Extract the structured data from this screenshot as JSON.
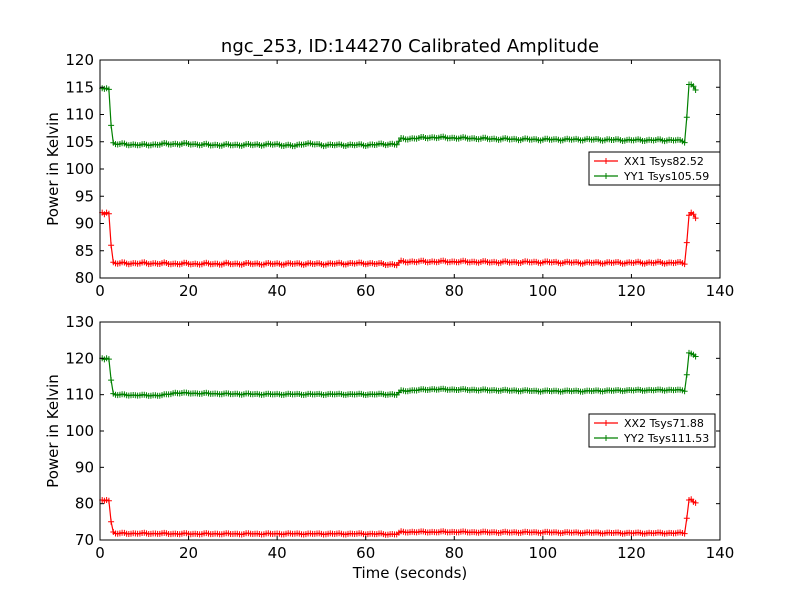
{
  "title": "ngc_253, ID:144270 Calibrated Amplitude",
  "chart_data": [
    {
      "type": "line",
      "ylabel": "Power in Kelvin",
      "xlabel": "",
      "xlim": [
        0,
        140
      ],
      "ylim": [
        80,
        120
      ],
      "xticks": [
        "0",
        "20",
        "40",
        "60",
        "80",
        "100",
        "120",
        "140"
      ],
      "yticks": [
        "80",
        "85",
        "90",
        "95",
        "100",
        "105",
        "110",
        "115",
        "120"
      ],
      "legend_position": "center-right",
      "series": [
        {
          "name": "XX1 Tsys82.52",
          "color": "#ff0000",
          "start": [
            [
              0.5,
              92.0
            ],
            [
              1.0,
              91.7
            ],
            [
              1.5,
              92.0
            ],
            [
              2.0,
              91.8
            ],
            [
              2.5,
              86.0
            ],
            [
              3.0,
              82.9
            ]
          ],
          "base": [
            [
              3,
              82.7
            ],
            [
              10,
              82.7
            ],
            [
              20,
              82.6
            ],
            [
              30,
              82.6
            ],
            [
              40,
              82.6
            ],
            [
              50,
              82.6
            ],
            [
              60,
              82.7
            ],
            [
              66,
              82.5
            ],
            [
              67,
              82.4
            ],
            [
              68,
              83.0
            ],
            [
              70,
              83.0
            ],
            [
              80,
              83.0
            ],
            [
              90,
              82.9
            ],
            [
              100,
              82.9
            ],
            [
              110,
              82.8
            ],
            [
              120,
              82.8
            ],
            [
              130,
              82.8
            ],
            [
              132,
              82.7
            ]
          ],
          "end": [
            [
              132.5,
              86.5
            ],
            [
              133.0,
              91.5
            ],
            [
              133.5,
              92.0
            ],
            [
              134.0,
              91.7
            ],
            [
              134.5,
              91.0
            ]
          ]
        },
        {
          "name": "YY1 Tsys105.59",
          "color": "#008000",
          "start": [
            [
              0.5,
              114.8
            ],
            [
              1.0,
              114.7
            ],
            [
              1.5,
              114.8
            ],
            [
              2.0,
              114.6
            ],
            [
              2.5,
              108.0
            ],
            [
              3.0,
              104.8
            ]
          ],
          "base": [
            [
              3,
              104.6
            ],
            [
              10,
              104.4
            ],
            [
              15,
              104.6
            ],
            [
              20,
              104.6
            ],
            [
              25,
              104.4
            ],
            [
              30,
              104.4
            ],
            [
              40,
              104.5
            ],
            [
              44,
              104.2
            ],
            [
              46,
              104.7
            ],
            [
              50,
              104.4
            ],
            [
              60,
              104.4
            ],
            [
              66,
              104.6
            ],
            [
              67,
              104.5
            ],
            [
              68,
              105.5
            ],
            [
              75,
              105.8
            ],
            [
              80,
              105.7
            ],
            [
              90,
              105.5
            ],
            [
              100,
              105.4
            ],
            [
              110,
              105.4
            ],
            [
              120,
              105.3
            ],
            [
              130,
              105.3
            ],
            [
              132,
              105.0
            ]
          ],
          "end": [
            [
              132.5,
              109.5
            ],
            [
              133.0,
              115.5
            ],
            [
              133.5,
              115.5
            ],
            [
              134.0,
              115.2
            ],
            [
              134.5,
              114.5
            ]
          ]
        }
      ]
    },
    {
      "type": "line",
      "ylabel": "Power in Kelvin",
      "xlabel": "Time (seconds)",
      "xlim": [
        0,
        140
      ],
      "ylim": [
        70,
        130
      ],
      "xticks": [
        "0",
        "20",
        "40",
        "60",
        "80",
        "100",
        "120",
        "140"
      ],
      "yticks": [
        "70",
        "80",
        "90",
        "100",
        "110",
        "120",
        "130"
      ],
      "legend_position": "center-right",
      "series": [
        {
          "name": "XX2 Tsys71.88",
          "color": "#ff0000",
          "start": [
            [
              0.5,
              81.0
            ],
            [
              1.0,
              80.8
            ],
            [
              1.5,
              81.0
            ],
            [
              2.0,
              80.8
            ],
            [
              2.5,
              75.0
            ],
            [
              3.0,
              72.2
            ]
          ],
          "base": [
            [
              3,
              71.8
            ],
            [
              10,
              71.8
            ],
            [
              20,
              71.7
            ],
            [
              30,
              71.7
            ],
            [
              40,
              71.7
            ],
            [
              50,
              71.7
            ],
            [
              60,
              71.7
            ],
            [
              66,
              71.6
            ],
            [
              67,
              71.6
            ],
            [
              68,
              72.2
            ],
            [
              75,
              72.2
            ],
            [
              80,
              72.2
            ],
            [
              90,
              72.1
            ],
            [
              100,
              72.1
            ],
            [
              110,
              72.0
            ],
            [
              120,
              71.9
            ],
            [
              130,
              71.9
            ],
            [
              132,
              71.9
            ]
          ],
          "end": [
            [
              132.5,
              76.0
            ],
            [
              133.0,
              81.0
            ],
            [
              133.5,
              81.2
            ],
            [
              134.0,
              80.5
            ],
            [
              134.5,
              80.2
            ]
          ]
        },
        {
          "name": "YY2 Tsys111.53",
          "color": "#008000",
          "start": [
            [
              0.5,
              120.0
            ],
            [
              1.0,
              119.7
            ],
            [
              1.5,
              120.0
            ],
            [
              2.0,
              119.8
            ],
            [
              2.5,
              114.0
            ],
            [
              3.0,
              110.3
            ]
          ],
          "base": [
            [
              3,
              110.0
            ],
            [
              10,
              109.8
            ],
            [
              14,
              109.8
            ],
            [
              17,
              110.5
            ],
            [
              20,
              110.4
            ],
            [
              30,
              110.2
            ],
            [
              40,
              110.1
            ],
            [
              50,
              110.1
            ],
            [
              60,
              110.1
            ],
            [
              66,
              110.1
            ],
            [
              67,
              110.0
            ],
            [
              68,
              111.0
            ],
            [
              75,
              111.5
            ],
            [
              80,
              111.4
            ],
            [
              90,
              111.2
            ],
            [
              100,
              111.0
            ],
            [
              110,
              111.0
            ],
            [
              120,
              111.2
            ],
            [
              130,
              111.3
            ],
            [
              132,
              111.1
            ]
          ],
          "end": [
            [
              132.5,
              115.5
            ],
            [
              133.0,
              121.5
            ],
            [
              133.5,
              121.3
            ],
            [
              134.0,
              121.0
            ],
            [
              134.5,
              120.5
            ]
          ]
        }
      ]
    }
  ]
}
